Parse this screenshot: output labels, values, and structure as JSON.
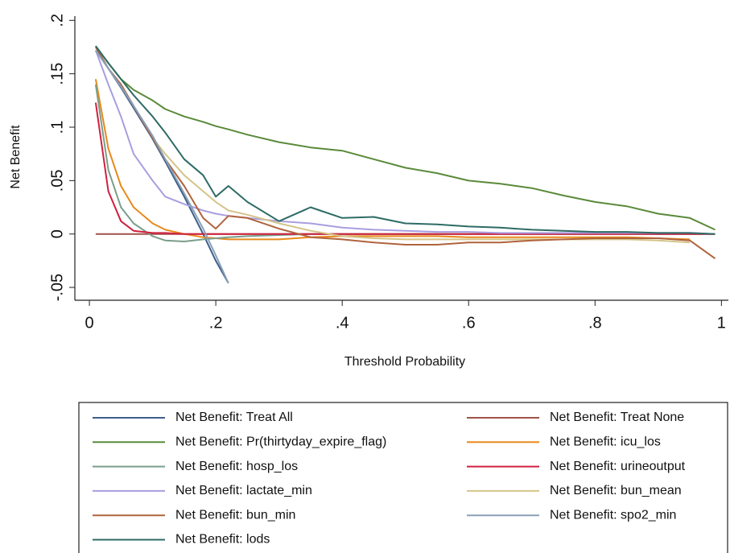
{
  "chart_data": {
    "type": "line",
    "x_label": "Threshold Probability",
    "y_label": "Net Benefit",
    "x": [
      0.01,
      0.03,
      0.05,
      0.07,
      0.1,
      0.12,
      0.15,
      0.18,
      0.2,
      0.22,
      0.25,
      0.3,
      0.35,
      0.4,
      0.45,
      0.5,
      0.55,
      0.6,
      0.65,
      0.7,
      0.75,
      0.8,
      0.85,
      0.9,
      0.95,
      0.99
    ],
    "xlim": [
      -0.023,
      1.011
    ],
    "xticks": [
      0,
      {
        "value": 0.2,
        "label": ".2"
      },
      {
        "value": 0.4,
        "label": ".4"
      },
      {
        "value": 0.6,
        "label": ".6"
      },
      {
        "value": 0.8,
        "label": ".8"
      },
      1
    ],
    "ylim": [
      -0.062,
      0.204
    ],
    "yticks": [
      {
        "value": -0.05,
        "label": "-.05"
      },
      0,
      {
        "value": 0.05,
        "label": ".05"
      },
      {
        "value": 0.1,
        "label": ".1"
      },
      {
        "value": 0.15,
        "label": ".15"
      },
      {
        "value": 0.2,
        "label": ".2"
      }
    ],
    "grid": false,
    "series": [
      {
        "name": "Net Benefit: Treat All",
        "color": "#3d5f8a",
        "values": [
          0.172,
          0.155,
          0.137,
          0.118,
          0.089,
          0.068,
          0.035,
          0.0,
          -0.025,
          -0.046,
          null,
          null,
          null,
          null,
          null,
          null,
          null,
          null,
          null,
          null,
          null,
          null,
          null,
          null,
          null,
          null
        ]
      },
      {
        "name": "Net Benefit: Treat None",
        "color": "#a0524a",
        "values": [
          0,
          0,
          0,
          0,
          0,
          0,
          0,
          0,
          0,
          0,
          0,
          0,
          0,
          0,
          0,
          0,
          0,
          0,
          0,
          0,
          0,
          0,
          0,
          0,
          0,
          0
        ]
      },
      {
        "name": "Net Benefit: Pr(thirtyday_expire_flag)",
        "color": "#5a8a3a",
        "values": [
          0.176,
          0.16,
          0.145,
          0.135,
          0.125,
          0.117,
          0.11,
          0.105,
          0.101,
          0.098,
          0.093,
          0.086,
          0.081,
          0.078,
          0.07,
          0.062,
          0.057,
          0.05,
          0.047,
          0.043,
          0.036,
          0.03,
          0.026,
          0.019,
          0.015,
          0.004
        ]
      },
      {
        "name": "Net Benefit: icu_los",
        "color": "#e8891c",
        "values": [
          0.145,
          0.08,
          0.045,
          0.025,
          0.01,
          0.004,
          0.0,
          -0.003,
          -0.004,
          -0.005,
          -0.005,
          -0.005,
          -0.003,
          -0.002,
          -0.002,
          -0.002,
          -0.002,
          -0.003,
          -0.003,
          -0.003,
          -0.003,
          -0.003,
          -0.003,
          -0.004,
          -0.005,
          null
        ]
      },
      {
        "name": "Net Benefit: hosp_los",
        "color": "#7a9e8a",
        "values": [
          0.14,
          0.06,
          0.025,
          0.01,
          -0.002,
          -0.006,
          -0.007,
          -0.005,
          -0.004,
          -0.003,
          -0.002,
          -0.001,
          0,
          0,
          0,
          0,
          0,
          0,
          0,
          0,
          0,
          0,
          0,
          0,
          0,
          0
        ]
      },
      {
        "name": "Net Benefit: urineoutput",
        "color": "#d0203f",
        "values": [
          0.123,
          0.04,
          0.012,
          0.003,
          0.001,
          0.001,
          0,
          0,
          0,
          0,
          0,
          0,
          0,
          0,
          0,
          0,
          0,
          0,
          0,
          0,
          0,
          0,
          0,
          0,
          0,
          0
        ]
      },
      {
        "name": "Net Benefit: lactate_min",
        "color": "#a99ee0",
        "values": [
          0.172,
          0.14,
          0.11,
          0.075,
          0.05,
          0.035,
          0.028,
          0.022,
          0.019,
          0.017,
          0.015,
          0.012,
          0.01,
          0.006,
          0.004,
          0.003,
          0.002,
          0.002,
          0.001,
          0.001,
          0.001,
          0.001,
          0.001,
          0.001,
          0.001,
          0
        ]
      },
      {
        "name": "Net Benefit: bun_mean",
        "color": "#d4c48a",
        "values": [
          0.175,
          0.155,
          0.14,
          0.12,
          0.09,
          0.075,
          0.055,
          0.04,
          0.03,
          0.022,
          0.018,
          0.01,
          0.003,
          -0.002,
          -0.004,
          -0.005,
          -0.005,
          -0.005,
          -0.005,
          -0.005,
          -0.005,
          -0.005,
          -0.005,
          -0.006,
          -0.008,
          null
        ]
      },
      {
        "name": "Net Benefit: bun_min",
        "color": "#b0633d",
        "values": [
          0.175,
          0.155,
          0.14,
          0.12,
          0.09,
          0.07,
          0.045,
          0.015,
          0.005,
          0.017,
          0.015,
          0.005,
          -0.003,
          -0.005,
          -0.008,
          -0.01,
          -0.01,
          -0.008,
          -0.008,
          -0.006,
          -0.005,
          -0.004,
          -0.004,
          -0.004,
          -0.006,
          -0.023
        ]
      },
      {
        "name": "Net Benefit: spo2_min",
        "color": "#8aa0b8",
        "values": [
          0.172,
          0.155,
          0.138,
          0.12,
          0.092,
          0.07,
          0.038,
          0.005,
          -0.02,
          -0.046,
          null,
          null,
          null,
          null,
          null,
          null,
          null,
          null,
          null,
          null,
          null,
          null,
          null,
          null,
          null,
          null
        ]
      },
      {
        "name": "Net Benefit: lods",
        "color": "#2e6b65",
        "values": [
          0.176,
          0.16,
          0.145,
          0.13,
          0.11,
          0.095,
          0.07,
          0.055,
          0.035,
          0.045,
          0.03,
          0.012,
          0.025,
          0.015,
          0.016,
          0.01,
          0.009,
          0.007,
          0.006,
          0.004,
          0.003,
          0.002,
          0.002,
          0.001,
          0.001,
          0
        ]
      }
    ]
  }
}
